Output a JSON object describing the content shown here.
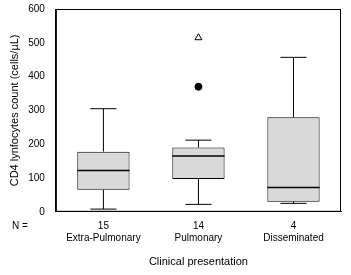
{
  "chart_data": {
    "type": "boxplot",
    "x_label": "Clinical presentation",
    "y_label": "CD4 lynfocytes count (cells/µL)",
    "categories": [
      "Extra-Pulmonary",
      "Pulmonary",
      "Disseminated"
    ],
    "n_label": "N =",
    "n": [
      15,
      14,
      4
    ],
    "boxes": [
      {
        "min": 8,
        "q1": 65,
        "median": 122,
        "q3": 178,
        "max": 305
      },
      {
        "min": 22,
        "q1": 97,
        "median": 165,
        "q3": 190,
        "max": 212
      },
      {
        "min": 25,
        "q1": 30,
        "median": 72,
        "q3": 280,
        "max": 457
      }
    ],
    "outliers": [
      {
        "category": "Pulmonary",
        "value": 370,
        "marker": "circle"
      },
      {
        "category": "Pulmonary",
        "value": 515,
        "marker": "triangle"
      }
    ],
    "color": "#d9d9d9",
    "ylim": [
      0,
      600
    ],
    "yticks": [
      0,
      100,
      200,
      300,
      400,
      500,
      600
    ],
    "grid": false
  }
}
